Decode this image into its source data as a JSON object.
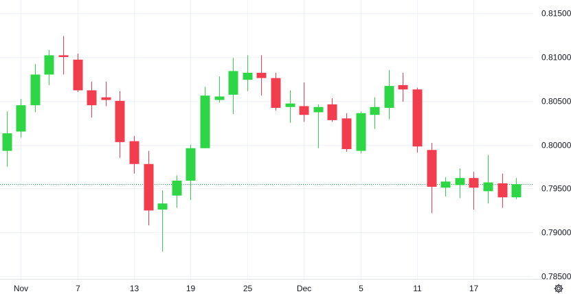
{
  "chart_data": {
    "type": "candlestick",
    "title": "",
    "ylim": [
      0.7847,
      0.8165
    ],
    "y_ticks": [
      "0.81500",
      "0.81000",
      "0.80500",
      "0.80000",
      "0.79500",
      "0.79000",
      "0.78500"
    ],
    "x_tick_labels": [
      {
        "index": 1,
        "label": "Nov"
      },
      {
        "index": 5,
        "label": "7"
      },
      {
        "index": 9,
        "label": "13"
      },
      {
        "index": 13,
        "label": "19"
      },
      {
        "index": 17,
        "label": "25"
      },
      {
        "index": 21,
        "label": "Dec"
      },
      {
        "index": 25,
        "label": "5"
      },
      {
        "index": 29,
        "label": "11"
      },
      {
        "index": 33,
        "label": "17"
      }
    ],
    "current_price": 0.7955,
    "colors": {
      "up": "#2ed646",
      "down": "#f23d4f",
      "current_line": "#1ea34a",
      "grid": "#f0f3fa"
    },
    "candles": [
      {
        "o": 0.7993,
        "h": 0.8038,
        "l": 0.7975,
        "c": 0.8013
      },
      {
        "o": 0.8015,
        "h": 0.8052,
        "l": 0.8008,
        "c": 0.8045
      },
      {
        "o": 0.8045,
        "h": 0.8092,
        "l": 0.8037,
        "c": 0.808
      },
      {
        "o": 0.808,
        "h": 0.8108,
        "l": 0.8068,
        "c": 0.8102
      },
      {
        "o": 0.8102,
        "h": 0.8124,
        "l": 0.808,
        "c": 0.81
      },
      {
        "o": 0.8097,
        "h": 0.8104,
        "l": 0.806,
        "c": 0.8062
      },
      {
        "o": 0.8062,
        "h": 0.8072,
        "l": 0.8031,
        "c": 0.8045
      },
      {
        "o": 0.8054,
        "h": 0.8072,
        "l": 0.8044,
        "c": 0.8051
      },
      {
        "o": 0.805,
        "h": 0.8061,
        "l": 0.7985,
        "c": 0.8003
      },
      {
        "o": 0.8004,
        "h": 0.801,
        "l": 0.7967,
        "c": 0.7978
      },
      {
        "o": 0.7978,
        "h": 0.7993,
        "l": 0.7908,
        "c": 0.7925
      },
      {
        "o": 0.7926,
        "h": 0.7948,
        "l": 0.7878,
        "c": 0.7933
      },
      {
        "o": 0.7942,
        "h": 0.7965,
        "l": 0.7928,
        "c": 0.7959
      },
      {
        "o": 0.7959,
        "h": 0.8,
        "l": 0.7937,
        "c": 0.7996
      },
      {
        "o": 0.7996,
        "h": 0.8066,
        "l": 0.7996,
        "c": 0.8056
      },
      {
        "o": 0.8051,
        "h": 0.8078,
        "l": 0.8048,
        "c": 0.8055
      },
      {
        "o": 0.8057,
        "h": 0.8099,
        "l": 0.8035,
        "c": 0.8084
      },
      {
        "o": 0.8074,
        "h": 0.8102,
        "l": 0.8061,
        "c": 0.8082
      },
      {
        "o": 0.8082,
        "h": 0.8102,
        "l": 0.8056,
        "c": 0.8076
      },
      {
        "o": 0.8076,
        "h": 0.8082,
        "l": 0.8039,
        "c": 0.8042
      },
      {
        "o": 0.8043,
        "h": 0.8062,
        "l": 0.8025,
        "c": 0.8047
      },
      {
        "o": 0.8044,
        "h": 0.8071,
        "l": 0.8026,
        "c": 0.8034
      },
      {
        "o": 0.8037,
        "h": 0.8046,
        "l": 0.7996,
        "c": 0.8043
      },
      {
        "o": 0.8046,
        "h": 0.8053,
        "l": 0.8026,
        "c": 0.8028
      },
      {
        "o": 0.803,
        "h": 0.8036,
        "l": 0.7992,
        "c": 0.7995
      },
      {
        "o": 0.7993,
        "h": 0.8038,
        "l": 0.799,
        "c": 0.8036
      },
      {
        "o": 0.8034,
        "h": 0.8054,
        "l": 0.8018,
        "c": 0.8043
      },
      {
        "o": 0.8042,
        "h": 0.8085,
        "l": 0.8029,
        "c": 0.8067
      },
      {
        "o": 0.8068,
        "h": 0.8082,
        "l": 0.8049,
        "c": 0.8063
      },
      {
        "o": 0.8063,
        "h": 0.8065,
        "l": 0.7991,
        "c": 0.7998
      },
      {
        "o": 0.7994,
        "h": 0.8002,
        "l": 0.7922,
        "c": 0.7952
      },
      {
        "o": 0.7951,
        "h": 0.7963,
        "l": 0.7941,
        "c": 0.7958
      },
      {
        "o": 0.7954,
        "h": 0.7973,
        "l": 0.7939,
        "c": 0.7962
      },
      {
        "o": 0.7962,
        "h": 0.7969,
        "l": 0.7926,
        "c": 0.7951
      },
      {
        "o": 0.7947,
        "h": 0.7988,
        "l": 0.7933,
        "c": 0.7957
      },
      {
        "o": 0.7956,
        "h": 0.7967,
        "l": 0.7928,
        "c": 0.794
      },
      {
        "o": 0.794,
        "h": 0.7962,
        "l": 0.7938,
        "c": 0.7955
      }
    ]
  },
  "toolbar": {
    "settings_icon": "gear-icon"
  }
}
